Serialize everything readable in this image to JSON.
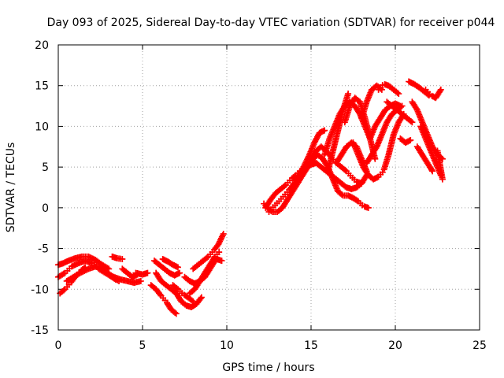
{
  "chart_data": {
    "type": "scatter",
    "title": "Day 093 of 2025, Sidereal Day-to-day VTEC variation (SDTVAR) for receiver p044",
    "xlabel": "GPS time / hours",
    "ylabel": "SDTVAR / TECUs",
    "xlim": [
      0,
      25
    ],
    "ylim": [
      -15,
      20
    ],
    "x_ticks": [
      "0",
      "5",
      "10",
      "15",
      "20",
      "25"
    ],
    "y_ticks": [
      "-15",
      "-10",
      "-5",
      "0",
      "5",
      "10",
      "15",
      "20"
    ],
    "grid": true,
    "marker": "+",
    "marker_color": "#ff0000",
    "series": [
      {
        "name": "track-1",
        "x": [
          0.0,
          0.4,
          0.8,
          1.2,
          1.6,
          2.0,
          2.4,
          2.8,
          3.2,
          3.6
        ],
        "y": [
          -8.5,
          -8.0,
          -7.2,
          -6.8,
          -6.5,
          -6.8,
          -7.5,
          -8.0,
          -8.5,
          -9.0
        ]
      },
      {
        "name": "track-2",
        "x": [
          0.0,
          0.3,
          0.6,
          1.0,
          1.4,
          1.8,
          2.2,
          2.6,
          3.0
        ],
        "y": [
          -7.0,
          -6.8,
          -6.5,
          -6.2,
          -6.0,
          -6.0,
          -6.4,
          -7.0,
          -7.5
        ]
      },
      {
        "name": "track-3",
        "x": [
          0.1,
          0.4,
          0.7,
          1.0,
          1.3,
          1.6
        ],
        "y": [
          -10.5,
          -10.0,
          -9.3,
          -8.5,
          -7.8,
          -7.3
        ]
      },
      {
        "name": "track-4",
        "x": [
          0.5,
          0.9,
          1.3,
          1.8,
          2.2,
          2.6,
          3.0,
          3.4
        ],
        "y": [
          -9.0,
          -8.5,
          -8.0,
          -7.5,
          -7.2,
          -7.5,
          -8.2,
          -8.8
        ]
      },
      {
        "name": "track-5",
        "x": [
          2.5,
          2.9,
          3.3,
          3.7,
          4.1,
          4.5,
          4.9
        ],
        "y": [
          -7.5,
          -8.0,
          -8.5,
          -8.8,
          -9.0,
          -9.2,
          -9.0
        ]
      },
      {
        "name": "track-6",
        "x": [
          3.2,
          3.5,
          3.8
        ],
        "y": [
          -6.0,
          -6.2,
          -6.3
        ]
      },
      {
        "name": "track-7",
        "x": [
          3.8,
          4.1,
          4.4,
          4.7
        ],
        "y": [
          -7.5,
          -8.0,
          -8.5,
          -8.2
        ]
      },
      {
        "name": "track-8",
        "x": [
          4.6,
          5.0,
          5.3
        ],
        "y": [
          -8.0,
          -8.2,
          -8.0
        ]
      },
      {
        "name": "track-9",
        "x": [
          5.5,
          5.8,
          6.1,
          6.4,
          6.7,
          7.0
        ],
        "y": [
          -9.5,
          -10.0,
          -10.8,
          -11.5,
          -12.5,
          -13.0
        ]
      },
      {
        "name": "track-10",
        "x": [
          5.7,
          6.0,
          6.3,
          6.6,
          6.9,
          7.2
        ],
        "y": [
          -6.5,
          -7.0,
          -7.5,
          -8.0,
          -8.3,
          -8.0
        ]
      },
      {
        "name": "track-11",
        "x": [
          5.8,
          6.1,
          6.4,
          6.7,
          7.0
        ],
        "y": [
          -8.0,
          -9.0,
          -9.5,
          -10.0,
          -10.5
        ]
      },
      {
        "name": "track-12",
        "x": [
          6.2,
          6.5,
          6.8,
          7.1
        ],
        "y": [
          -6.3,
          -6.6,
          -7.0,
          -7.3
        ]
      },
      {
        "name": "track-13",
        "x": [
          6.8,
          7.1,
          7.4,
          7.7,
          8.0
        ],
        "y": [
          -9.5,
          -10.0,
          -10.6,
          -11.0,
          -11.5
        ]
      },
      {
        "name": "track-14",
        "x": [
          7.0,
          7.3,
          7.6,
          7.9,
          8.2,
          8.5
        ],
        "y": [
          -10.5,
          -11.5,
          -12.0,
          -12.2,
          -11.8,
          -11.0
        ]
      },
      {
        "name": "track-15",
        "x": [
          7.5,
          7.8,
          8.1,
          8.4,
          8.7,
          9.0,
          9.3
        ],
        "y": [
          -8.5,
          -9.0,
          -9.3,
          -9.0,
          -8.5,
          -7.5,
          -6.5
        ]
      },
      {
        "name": "track-16",
        "x": [
          7.8,
          8.1,
          8.4,
          8.7,
          9.0,
          9.3,
          9.6
        ],
        "y": [
          -10.5,
          -10.0,
          -9.0,
          -8.0,
          -7.0,
          -6.0,
          -5.3
        ]
      },
      {
        "name": "track-17",
        "x": [
          8.0,
          8.3,
          8.6,
          8.9,
          9.2,
          9.5,
          9.8
        ],
        "y": [
          -7.5,
          -7.0,
          -6.5,
          -6.0,
          -5.3,
          -4.5,
          -3.2
        ]
      },
      {
        "name": "track-18",
        "x": [
          9.4,
          9.7
        ],
        "y": [
          -6.3,
          -6.5
        ]
      },
      {
        "name": "track-19",
        "x": [
          12.2,
          12.4,
          12.7,
          13.0,
          13.3,
          13.6,
          13.9,
          14.2,
          14.5,
          14.8,
          15.1,
          15.4,
          15.7,
          16.0,
          16.3,
          16.6,
          16.9,
          17.2,
          17.5,
          17.8,
          18.1,
          18.4
        ],
        "y": [
          0.5,
          0.0,
          -0.5,
          -0.5,
          0.0,
          1.0,
          2.0,
          3.0,
          4.0,
          5.0,
          6.0,
          6.5,
          6.0,
          5.0,
          3.5,
          2.0,
          1.5,
          1.5,
          1.2,
          0.8,
          0.2,
          0.0
        ]
      },
      {
        "name": "track-20",
        "x": [
          12.3,
          12.6,
          12.9,
          13.2,
          13.5,
          13.8,
          14.1,
          14.4,
          14.7,
          15.0,
          15.3
        ],
        "y": [
          0.0,
          1.0,
          1.8,
          2.3,
          2.8,
          3.5,
          4.0,
          4.6,
          5.0,
          5.3,
          5.5
        ]
      },
      {
        "name": "track-21",
        "x": [
          12.5,
          12.8,
          13.1,
          13.4,
          13.7,
          14.0,
          14.3,
          14.6,
          14.9,
          15.2,
          15.5,
          15.8
        ],
        "y": [
          -0.5,
          0.2,
          0.8,
          1.5,
          2.2,
          3.0,
          4.0,
          5.2,
          6.5,
          8.0,
          9.2,
          9.5
        ]
      },
      {
        "name": "track-22",
        "x": [
          15.0,
          15.3,
          15.6,
          15.9,
          16.2,
          16.5,
          16.8,
          17.1,
          17.4,
          17.7,
          18.0
        ],
        "y": [
          6.0,
          7.0,
          7.5,
          7.0,
          6.2,
          5.5,
          5.0,
          4.5,
          3.8,
          3.2,
          3.0
        ]
      },
      {
        "name": "track-23",
        "x": [
          15.3,
          15.6,
          15.9,
          16.2,
          16.5,
          16.8,
          17.1,
          17.4,
          17.7,
          18.0,
          18.3
        ],
        "y": [
          5.5,
          5.0,
          4.5,
          4.0,
          3.5,
          3.0,
          2.5,
          2.3,
          2.5,
          3.0,
          4.0
        ]
      },
      {
        "name": "track-24",
        "x": [
          15.8,
          16.1,
          16.4,
          16.7,
          17.0,
          17.3,
          17.6,
          17.9,
          18.2,
          18.5
        ],
        "y": [
          6.5,
          8.5,
          10.0,
          11.5,
          12.5,
          13.0,
          12.5,
          11.5,
          10.0,
          8.5
        ]
      },
      {
        "name": "track-25",
        "x": [
          16.0,
          16.3,
          16.6,
          16.9,
          17.2
        ],
        "y": [
          4.5,
          7.0,
          9.5,
          12.0,
          14.0
        ]
      },
      {
        "name": "track-26",
        "x": [
          16.5,
          16.8,
          17.1,
          17.4,
          17.7,
          18.0,
          18.3
        ],
        "y": [
          5.5,
          6.5,
          7.5,
          8.0,
          7.5,
          6.0,
          4.5
        ]
      },
      {
        "name": "track-27",
        "x": [
          17.0,
          17.3,
          17.6,
          17.9,
          18.2,
          18.5,
          18.8
        ],
        "y": [
          10.5,
          12.5,
          13.5,
          13.0,
          11.0,
          8.5,
          6.0
        ]
      },
      {
        "name": "track-28",
        "x": [
          17.5,
          17.8,
          18.1,
          18.4,
          18.7,
          19.0,
          19.3,
          19.6,
          19.9,
          20.2,
          20.5
        ],
        "y": [
          8.0,
          6.5,
          5.0,
          4.0,
          3.5,
          3.8,
          4.5,
          6.5,
          9.0,
          10.5,
          11.5
        ]
      },
      {
        "name": "track-29",
        "x": [
          18.0,
          18.3,
          18.6,
          18.9,
          19.2
        ],
        "y": [
          11.0,
          13.0,
          14.5,
          15.0,
          14.5
        ]
      },
      {
        "name": "track-30",
        "x": [
          18.3,
          18.6,
          18.9,
          19.2,
          19.5,
          19.8,
          20.1,
          20.4
        ],
        "y": [
          5.5,
          6.5,
          7.5,
          9.0,
          10.5,
          11.5,
          12.0,
          12.5
        ]
      },
      {
        "name": "track-31",
        "x": [
          18.5,
          18.8,
          19.1,
          19.4,
          19.7,
          20.0,
          20.3
        ],
        "y": [
          8.5,
          10.0,
          11.0,
          12.0,
          12.5,
          12.8,
          12.5
        ]
      },
      {
        "name": "track-32",
        "x": [
          19.0,
          19.3,
          19.6,
          19.9,
          20.2
        ],
        "y": [
          14.5,
          15.2,
          15.0,
          14.5,
          14.0
        ]
      },
      {
        "name": "track-33",
        "x": [
          19.5,
          19.8,
          20.1,
          20.4,
          20.7,
          21.0
        ],
        "y": [
          13.0,
          12.5,
          12.0,
          11.5,
          11.0,
          10.5
        ]
      },
      {
        "name": "track-34",
        "x": [
          20.3,
          20.6,
          20.9
        ],
        "y": [
          8.5,
          8.0,
          8.3
        ]
      },
      {
        "name": "track-35",
        "x": [
          20.8,
          21.1,
          21.4,
          21.7,
          22.0
        ],
        "y": [
          15.5,
          15.2,
          14.8,
          14.3,
          13.8
        ]
      },
      {
        "name": "track-36",
        "x": [
          21.0,
          21.3,
          21.6,
          21.9,
          22.2,
          22.5,
          22.8
        ],
        "y": [
          13.0,
          12.0,
          10.5,
          9.0,
          7.5,
          6.5,
          6.0
        ]
      },
      {
        "name": "track-37",
        "x": [
          21.5,
          21.8,
          22.1,
          22.4,
          22.7
        ],
        "y": [
          10.0,
          8.5,
          7.0,
          5.5,
          4.0
        ]
      },
      {
        "name": "track-38",
        "x": [
          21.3,
          21.6,
          21.9,
          22.2
        ],
        "y": [
          7.5,
          6.5,
          5.5,
          4.5
        ]
      },
      {
        "name": "track-39",
        "x": [
          21.8,
          22.1,
          22.4,
          22.7
        ],
        "y": [
          14.5,
          13.8,
          13.5,
          14.5
        ]
      },
      {
        "name": "track-40",
        "x": [
          22.5,
          22.8
        ],
        "y": [
          7.0,
          3.5
        ]
      }
    ]
  }
}
